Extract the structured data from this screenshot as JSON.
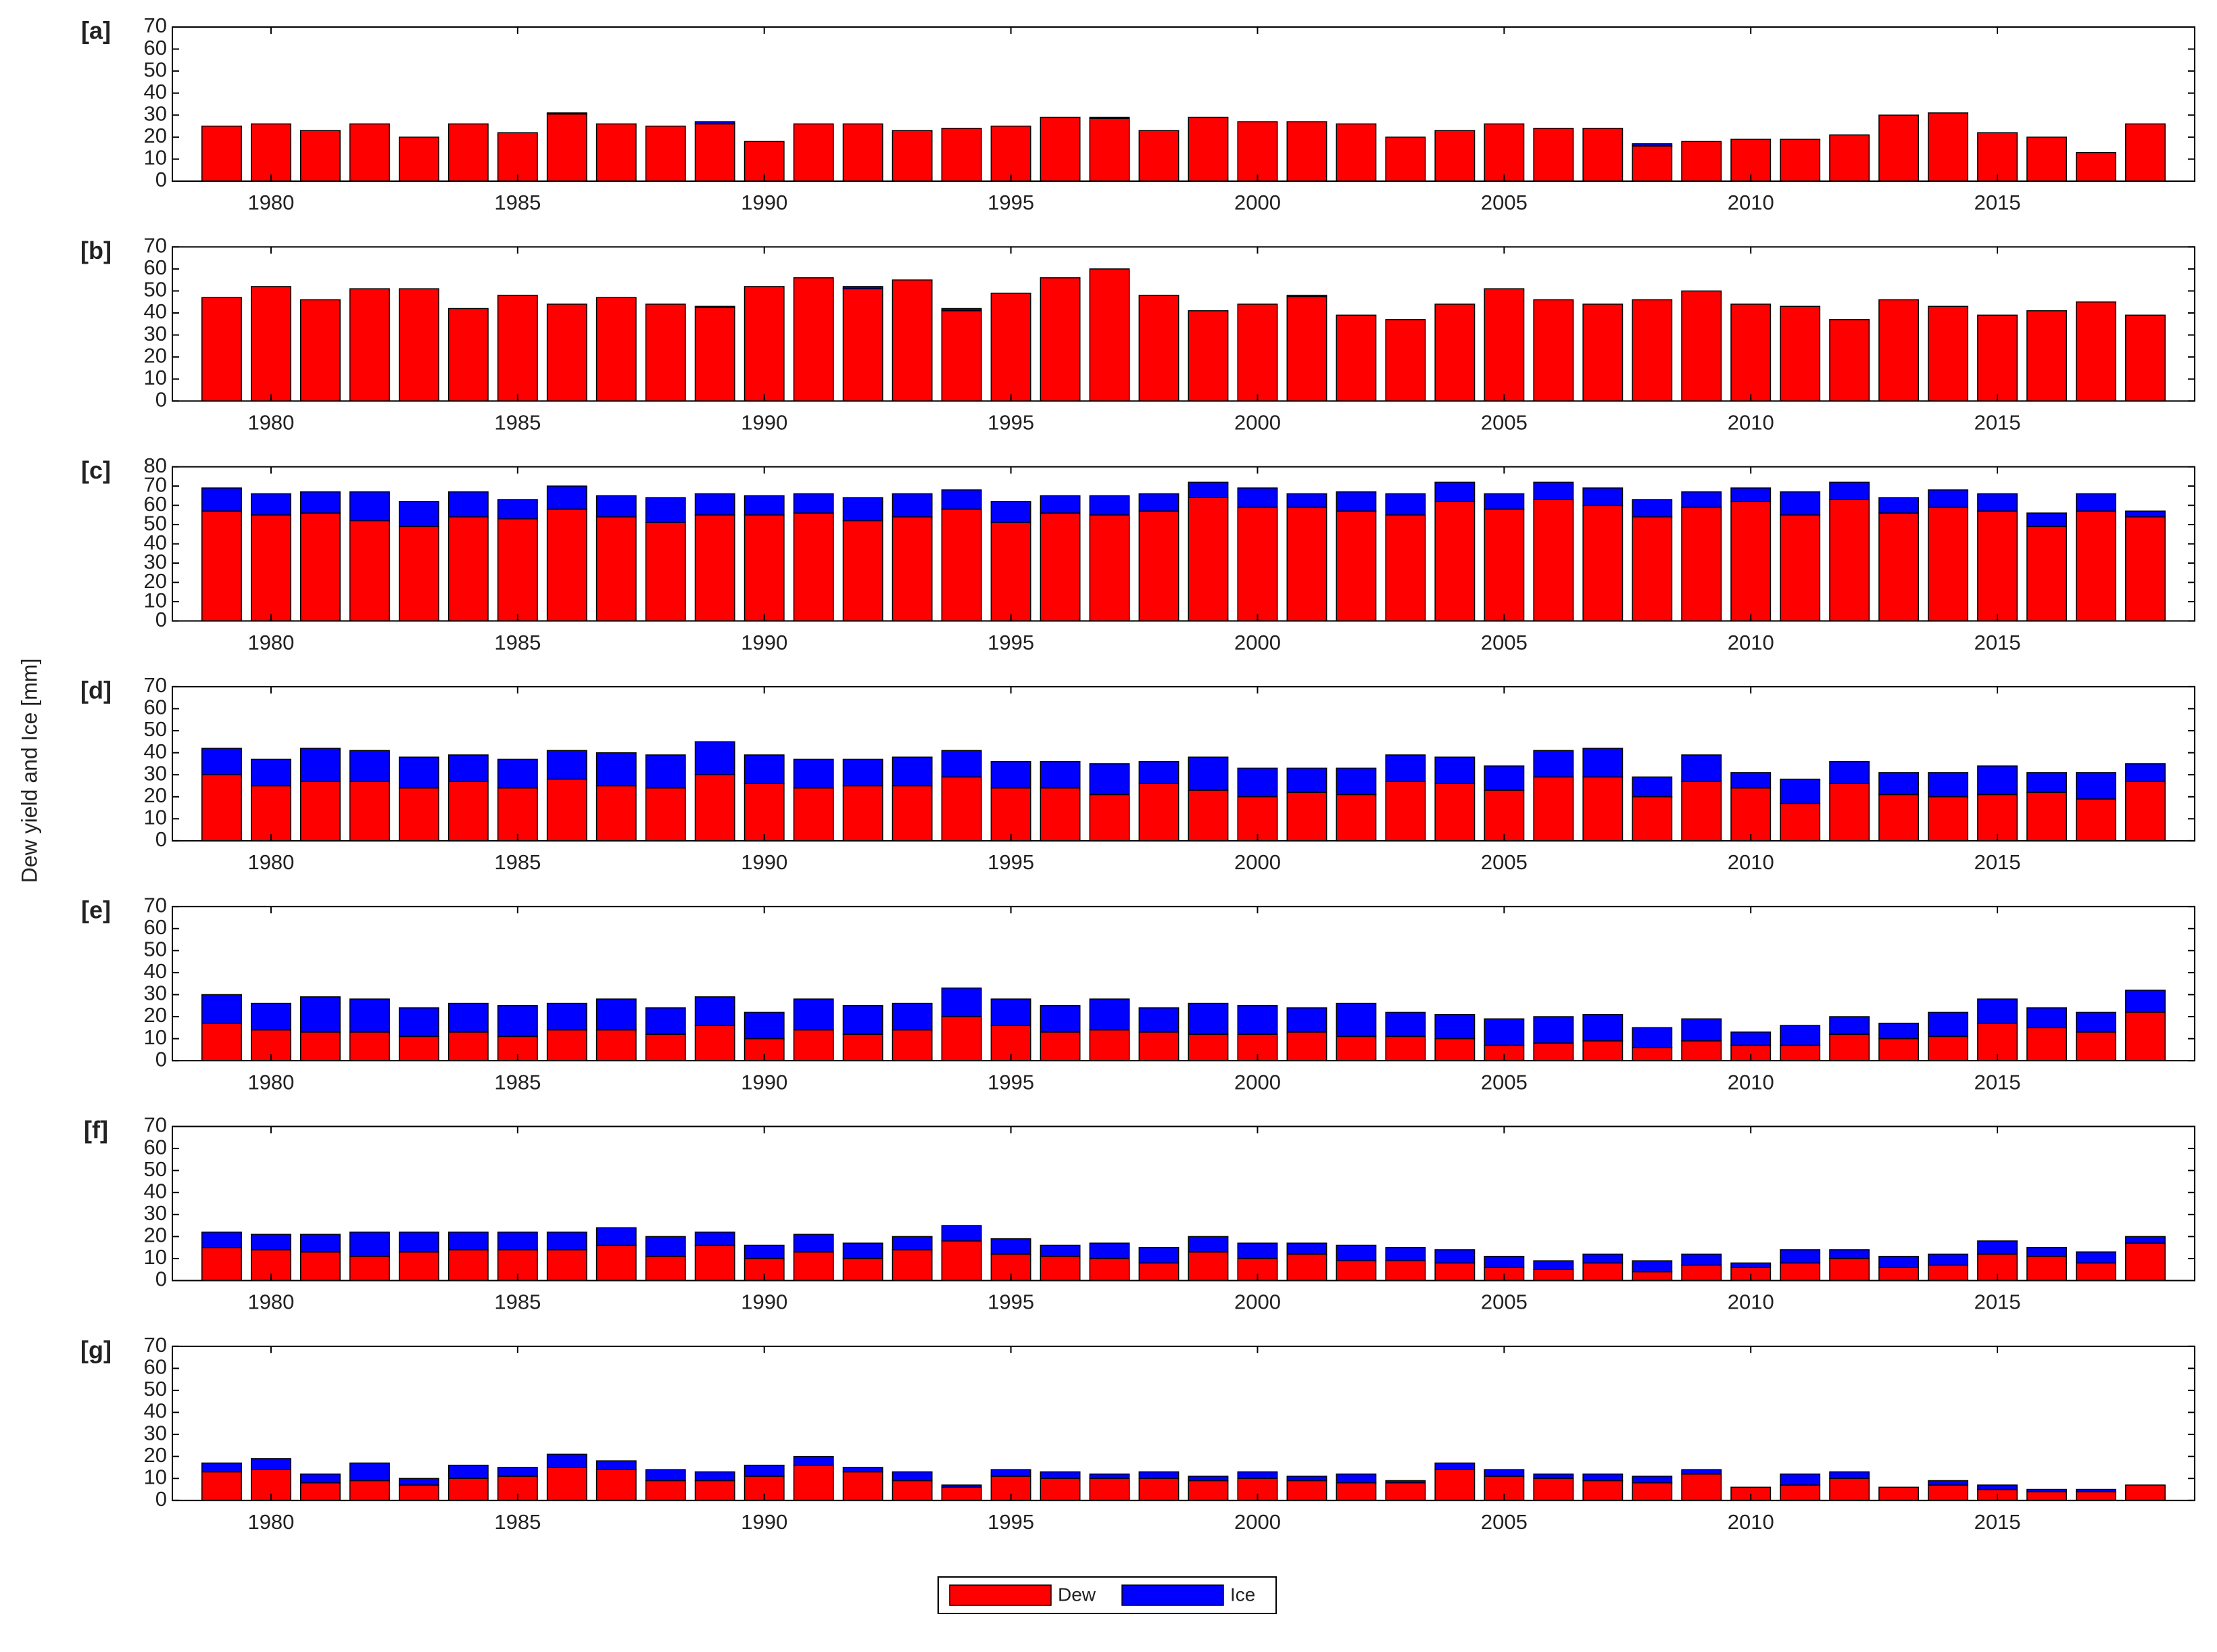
{
  "ylabel": "Dew yield and Ice [mm]",
  "legend": "bottom",
  "chart_data": [
    {
      "type": "bar",
      "stacked": true,
      "label": "[a]",
      "x": [
        1979,
        1980,
        1981,
        1982,
        1983,
        1984,
        1985,
        1986,
        1987,
        1988,
        1989,
        1990,
        1991,
        1992,
        1993,
        1994,
        1995,
        1996,
        1997,
        1998,
        1999,
        2000,
        2001,
        2002,
        2003,
        2004,
        2005,
        2006,
        2007,
        2008,
        2009,
        2010,
        2011,
        2012,
        2013,
        2014,
        2015,
        2016,
        2017,
        2018
      ],
      "series": [
        {
          "name": "Dew",
          "color": "#ff0000",
          "values": [
            25,
            26,
            23,
            26,
            20,
            26,
            22,
            30.5,
            26,
            25,
            26,
            18,
            26,
            26,
            23,
            24,
            25,
            29,
            28.5,
            23,
            29,
            27,
            27,
            26,
            20,
            23,
            26,
            24,
            24,
            16,
            18,
            19,
            19,
            21,
            30,
            31,
            22,
            20,
            13,
            26
          ]
        },
        {
          "name": "Ice",
          "color": "#0000ff",
          "values": [
            0,
            0,
            0,
            0,
            0,
            0,
            0,
            0.5,
            0,
            0,
            1,
            0,
            0,
            0,
            0,
            0,
            0,
            0,
            0.5,
            0,
            0,
            0,
            0,
            0,
            0,
            0,
            0,
            0,
            0,
            1,
            0,
            0,
            0,
            0,
            0,
            0,
            0,
            0,
            0,
            0
          ]
        }
      ],
      "xlim": [
        1978,
        2019
      ],
      "xticks": [
        1980,
        1985,
        1990,
        1995,
        2000,
        2005,
        2010,
        2015
      ],
      "ylim": [
        0,
        70
      ],
      "yticks": [
        0,
        10,
        20,
        30,
        40,
        50,
        60,
        70
      ]
    },
    {
      "type": "bar",
      "stacked": true,
      "label": "[b]",
      "x": [
        1979,
        1980,
        1981,
        1982,
        1983,
        1984,
        1985,
        1986,
        1987,
        1988,
        1989,
        1990,
        1991,
        1992,
        1993,
        1994,
        1995,
        1996,
        1997,
        1998,
        1999,
        2000,
        2001,
        2002,
        2003,
        2004,
        2005,
        2006,
        2007,
        2008,
        2009,
        2010,
        2011,
        2012,
        2013,
        2014,
        2015,
        2016,
        2017,
        2018
      ],
      "series": [
        {
          "name": "Dew",
          "color": "#ff0000",
          "values": [
            47,
            52,
            46,
            51,
            51,
            42,
            48,
            44,
            47,
            44,
            42.5,
            52,
            56,
            51,
            55,
            41,
            49,
            56,
            60,
            48,
            41,
            44,
            47.5,
            39,
            37,
            44,
            51,
            46,
            44,
            46,
            50,
            44,
            43,
            37,
            46,
            43,
            39,
            41,
            45,
            39
          ]
        },
        {
          "name": "Ice",
          "color": "#0000ff",
          "values": [
            0,
            0,
            0,
            0,
            0,
            0,
            0,
            0,
            0,
            0,
            0.5,
            0,
            0,
            1,
            0,
            1,
            0,
            0,
            0,
            0,
            0,
            0,
            0.5,
            0,
            0,
            0,
            0,
            0,
            0,
            0,
            0,
            0,
            0,
            0,
            0,
            0,
            0,
            0,
            0,
            0
          ]
        }
      ],
      "xlim": [
        1978,
        2019
      ],
      "xticks": [
        1980,
        1985,
        1990,
        1995,
        2000,
        2005,
        2010,
        2015
      ],
      "ylim": [
        0,
        70
      ],
      "yticks": [
        0,
        10,
        20,
        30,
        40,
        50,
        60,
        70
      ]
    },
    {
      "type": "bar",
      "stacked": true,
      "label": "[c]",
      "x": [
        1979,
        1980,
        1981,
        1982,
        1983,
        1984,
        1985,
        1986,
        1987,
        1988,
        1989,
        1990,
        1991,
        1992,
        1993,
        1994,
        1995,
        1996,
        1997,
        1998,
        1999,
        2000,
        2001,
        2002,
        2003,
        2004,
        2005,
        2006,
        2007,
        2008,
        2009,
        2010,
        2011,
        2012,
        2013,
        2014,
        2015,
        2016,
        2017,
        2018
      ],
      "series": [
        {
          "name": "Dew",
          "color": "#ff0000",
          "values": [
            57,
            55,
            56,
            52,
            49,
            54,
            53,
            58,
            54,
            51,
            55,
            55,
            56,
            52,
            54,
            58,
            51,
            56,
            55,
            57,
            64,
            59,
            59,
            57,
            55,
            62,
            58,
            63,
            60,
            54,
            59,
            62,
            55,
            63,
            56,
            59,
            57,
            49,
            57,
            54
          ]
        },
        {
          "name": "Ice",
          "color": "#0000ff",
          "values": [
            12,
            11,
            11,
            15,
            13,
            13,
            10,
            12,
            11,
            13,
            11,
            10,
            10,
            12,
            12,
            10,
            11,
            9,
            10,
            9,
            8,
            10,
            7,
            10,
            11,
            10,
            8,
            9,
            9,
            9,
            8,
            7,
            12,
            9,
            8,
            9,
            9,
            7,
            9,
            3
          ]
        }
      ],
      "xlim": [
        1978,
        2019
      ],
      "xticks": [
        1980,
        1985,
        1990,
        1995,
        2000,
        2005,
        2010,
        2015
      ],
      "ylim": [
        0,
        80
      ],
      "yticks": [
        0,
        10,
        20,
        30,
        40,
        50,
        60,
        70,
        80
      ]
    },
    {
      "type": "bar",
      "stacked": true,
      "label": "[d]",
      "x": [
        1979,
        1980,
        1981,
        1982,
        1983,
        1984,
        1985,
        1986,
        1987,
        1988,
        1989,
        1990,
        1991,
        1992,
        1993,
        1994,
        1995,
        1996,
        1997,
        1998,
        1999,
        2000,
        2001,
        2002,
        2003,
        2004,
        2005,
        2006,
        2007,
        2008,
        2009,
        2010,
        2011,
        2012,
        2013,
        2014,
        2015,
        2016,
        2017,
        2018
      ],
      "series": [
        {
          "name": "Dew",
          "color": "#ff0000",
          "values": [
            30,
            25,
            27,
            27,
            24,
            27,
            24,
            28,
            25,
            24,
            30,
            26,
            24,
            25,
            25,
            29,
            24,
            24,
            21,
            26,
            23,
            20,
            22,
            21,
            27,
            26,
            23,
            29,
            29,
            20,
            27,
            24,
            17,
            26,
            21,
            20,
            21,
            22,
            19,
            27
          ]
        },
        {
          "name": "Ice",
          "color": "#0000ff",
          "values": [
            12,
            12,
            15,
            14,
            14,
            12,
            13,
            13,
            15,
            15,
            15,
            13,
            13,
            12,
            13,
            12,
            12,
            12,
            14,
            10,
            15,
            13,
            11,
            12,
            12,
            12,
            11,
            12,
            13,
            9,
            12,
            7,
            11,
            10,
            10,
            11,
            13,
            9,
            12,
            8
          ]
        }
      ],
      "xlim": [
        1978,
        2019
      ],
      "xticks": [
        1980,
        1985,
        1990,
        1995,
        2000,
        2005,
        2010,
        2015
      ],
      "ylim": [
        0,
        70
      ],
      "yticks": [
        0,
        10,
        20,
        30,
        40,
        50,
        60,
        70
      ]
    },
    {
      "type": "bar",
      "stacked": true,
      "label": "[e]",
      "x": [
        1979,
        1980,
        1981,
        1982,
        1983,
        1984,
        1985,
        1986,
        1987,
        1988,
        1989,
        1990,
        1991,
        1992,
        1993,
        1994,
        1995,
        1996,
        1997,
        1998,
        1999,
        2000,
        2001,
        2002,
        2003,
        2004,
        2005,
        2006,
        2007,
        2008,
        2009,
        2010,
        2011,
        2012,
        2013,
        2014,
        2015,
        2016,
        2017,
        2018
      ],
      "series": [
        {
          "name": "Dew",
          "color": "#ff0000",
          "values": [
            17,
            14,
            13,
            13,
            11,
            13,
            11,
            14,
            14,
            12,
            16,
            10,
            14,
            12,
            14,
            20,
            16,
            13,
            14,
            13,
            12,
            12,
            13,
            11,
            11,
            10,
            7,
            8,
            9,
            6,
            9,
            7,
            7,
            12,
            10,
            11,
            17,
            15,
            13,
            22
          ]
        },
        {
          "name": "Ice",
          "color": "#0000ff",
          "values": [
            13,
            12,
            16,
            15,
            13,
            13,
            14,
            12,
            14,
            12,
            13,
            12,
            14,
            13,
            12,
            13,
            12,
            12,
            14,
            11,
            14,
            13,
            11,
            15,
            11,
            11,
            12,
            12,
            12,
            9,
            10,
            6,
            9,
            8,
            7,
            11,
            11,
            9,
            9,
            10
          ]
        }
      ],
      "xlim": [
        1978,
        2019
      ],
      "xticks": [
        1980,
        1985,
        1990,
        1995,
        2000,
        2005,
        2010,
        2015
      ],
      "ylim": [
        0,
        70
      ],
      "yticks": [
        0,
        10,
        20,
        30,
        40,
        50,
        60,
        70
      ]
    },
    {
      "type": "bar",
      "stacked": true,
      "label": "[f]",
      "x": [
        1979,
        1980,
        1981,
        1982,
        1983,
        1984,
        1985,
        1986,
        1987,
        1988,
        1989,
        1990,
        1991,
        1992,
        1993,
        1994,
        1995,
        1996,
        1997,
        1998,
        1999,
        2000,
        2001,
        2002,
        2003,
        2004,
        2005,
        2006,
        2007,
        2008,
        2009,
        2010,
        2011,
        2012,
        2013,
        2014,
        2015,
        2016,
        2017,
        2018
      ],
      "series": [
        {
          "name": "Dew",
          "color": "#ff0000",
          "values": [
            15,
            14,
            13,
            11,
            13,
            14,
            14,
            14,
            16,
            11,
            16,
            10,
            13,
            10,
            14,
            18,
            12,
            11,
            10,
            8,
            13,
            10,
            12,
            9,
            9,
            8,
            6,
            5,
            8,
            4,
            7,
            6,
            8,
            10,
            6,
            7,
            12,
            11,
            8,
            17
          ]
        },
        {
          "name": "Ice",
          "color": "#0000ff",
          "values": [
            7,
            7,
            8,
            11,
            9,
            8,
            8,
            8,
            8,
            9,
            6,
            6,
            8,
            7,
            6,
            7,
            7,
            5,
            7,
            7,
            7,
            7,
            5,
            7,
            6,
            6,
            5,
            4,
            4,
            5,
            5,
            2,
            6,
            4,
            5,
            5,
            6,
            4,
            5,
            3
          ]
        }
      ],
      "xlim": [
        1978,
        2019
      ],
      "xticks": [
        1980,
        1985,
        1990,
        1995,
        2000,
        2005,
        2010,
        2015
      ],
      "ylim": [
        0,
        70
      ],
      "yticks": [
        0,
        10,
        20,
        30,
        40,
        50,
        60,
        70
      ]
    },
    {
      "type": "bar",
      "stacked": true,
      "label": "[g]",
      "x": [
        1979,
        1980,
        1981,
        1982,
        1983,
        1984,
        1985,
        1986,
        1987,
        1988,
        1989,
        1990,
        1991,
        1992,
        1993,
        1994,
        1995,
        1996,
        1997,
        1998,
        1999,
        2000,
        2001,
        2002,
        2003,
        2004,
        2005,
        2006,
        2007,
        2008,
        2009,
        2010,
        2011,
        2012,
        2013,
        2014,
        2015,
        2016,
        2017,
        2018
      ],
      "series": [
        {
          "name": "Dew",
          "color": "#ff0000",
          "values": [
            13,
            14,
            8,
            9,
            7,
            10,
            11,
            15,
            14,
            9,
            9,
            11,
            16,
            13,
            9,
            6,
            11,
            10,
            10,
            10,
            9,
            10,
            9,
            8,
            8,
            14,
            11,
            10,
            9,
            8,
            12,
            6,
            7,
            10,
            6,
            7,
            5,
            4,
            4,
            7
          ]
        },
        {
          "name": "Ice",
          "color": "#0000ff",
          "values": [
            4,
            5,
            4,
            8,
            3,
            6,
            4,
            6,
            4,
            5,
            4,
            5,
            4,
            2,
            4,
            1,
            3,
            3,
            2,
            3,
            2,
            3,
            2,
            4,
            1,
            3,
            3,
            2,
            3,
            3,
            2,
            0,
            5,
            3,
            0,
            2,
            2,
            1,
            1,
            0
          ]
        }
      ],
      "xlim": [
        1978,
        2019
      ],
      "xticks": [
        1980,
        1985,
        1990,
        1995,
        2000,
        2005,
        2010,
        2015
      ],
      "ylim": [
        0,
        70
      ],
      "yticks": [
        0,
        10,
        20,
        30,
        40,
        50,
        60,
        70
      ]
    }
  ]
}
